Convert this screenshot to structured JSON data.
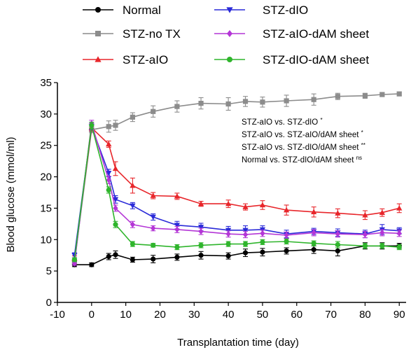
{
  "chart_data": {
    "type": "line",
    "xlabel": "Transplantation time (day)",
    "ylabel": "Blood glucose (mmol/ml)",
    "xlim": [
      -10,
      92
    ],
    "ylim": [
      0,
      35
    ],
    "xticks": [
      -10,
      0,
      10,
      20,
      30,
      40,
      50,
      60,
      70,
      80,
      90
    ],
    "yticks": [
      0,
      5,
      10,
      15,
      20,
      25,
      30,
      35
    ],
    "legend_placement": "top",
    "series": [
      {
        "name": "Normal",
        "color": "#000000",
        "marker": "circle",
        "x": [
          -5,
          0,
          5,
          7,
          12,
          18,
          25,
          32,
          40,
          45,
          50,
          57,
          65,
          72,
          80,
          85,
          90
        ],
        "y": [
          6.0,
          6.0,
          7.3,
          7.6,
          6.8,
          6.9,
          7.2,
          7.5,
          7.4,
          7.9,
          8.0,
          8.2,
          8.4,
          8.2,
          9.0,
          9.0,
          9.0
        ],
        "err": [
          0.3,
          0.3,
          0.5,
          0.6,
          0.4,
          0.6,
          0.5,
          0.6,
          0.5,
          0.6,
          0.6,
          0.5,
          0.6,
          0.8,
          0.5,
          0.5,
          0.4
        ]
      },
      {
        "name": "STZ-no TX",
        "color": "#8c8c8c",
        "marker": "square",
        "x": [
          -5,
          0,
          5,
          7,
          12,
          18,
          25,
          32,
          40,
          45,
          50,
          57,
          65,
          72,
          80,
          85,
          90
        ],
        "y": [
          6.5,
          27.5,
          28.0,
          28.2,
          29.5,
          30.4,
          31.2,
          31.7,
          31.6,
          32.0,
          31.9,
          32.1,
          32.3,
          32.8,
          32.9,
          33.1,
          33.2
        ],
        "err": [
          0.4,
          0.5,
          0.9,
          0.8,
          0.7,
          0.9,
          0.9,
          0.9,
          1.0,
          0.8,
          0.8,
          0.9,
          0.9,
          0.5,
          0.4,
          0.3,
          0.3
        ]
      },
      {
        "name": "STZ-aIO",
        "color": "#e8262b",
        "marker": "triangle",
        "x": [
          -5,
          0,
          5,
          7,
          12,
          18,
          25,
          32,
          40,
          45,
          50,
          57,
          65,
          72,
          80,
          85,
          90
        ],
        "y": [
          7.0,
          27.8,
          25.2,
          21.3,
          18.6,
          17.0,
          16.9,
          15.7,
          15.7,
          15.2,
          15.5,
          14.7,
          14.4,
          14.2,
          13.9,
          14.3,
          15.0
        ],
        "err": [
          0.4,
          0.5,
          0.5,
          1.1,
          1.2,
          0.5,
          0.5,
          0.4,
          0.6,
          0.5,
          0.7,
          0.8,
          0.8,
          0.7,
          0.7,
          0.6,
          0.7
        ]
      },
      {
        "name": "STZ-dIO",
        "color": "#2a2ad8",
        "marker": "triangle-down",
        "x": [
          -5,
          0,
          5,
          7,
          12,
          18,
          25,
          32,
          40,
          45,
          50,
          57,
          65,
          72,
          80,
          85,
          90
        ],
        "y": [
          7.5,
          28.0,
          20.6,
          16.4,
          15.4,
          13.6,
          12.3,
          12.0,
          11.5,
          11.5,
          11.6,
          10.9,
          11.3,
          11.1,
          10.9,
          11.6,
          11.4
        ],
        "err": [
          0.4,
          0.5,
          0.6,
          0.6,
          0.5,
          0.5,
          0.6,
          0.6,
          0.6,
          0.7,
          0.6,
          0.6,
          0.5,
          0.6,
          0.6,
          0.8,
          0.5
        ]
      },
      {
        "name": "STZ-aIO-dAM sheet",
        "color": "#b436d6",
        "marker": "diamond",
        "x": [
          -5,
          0,
          5,
          7,
          12,
          18,
          25,
          32,
          40,
          45,
          50,
          57,
          65,
          72,
          80,
          85,
          90
        ],
        "y": [
          6.2,
          28.5,
          19.5,
          15.0,
          12.4,
          11.8,
          11.6,
          11.3,
          10.9,
          10.8,
          11.0,
          10.7,
          11.1,
          10.9,
          10.8,
          11.1,
          11.0
        ],
        "err": [
          0.3,
          0.5,
          0.6,
          0.5,
          0.5,
          0.4,
          0.5,
          0.5,
          0.5,
          0.5,
          0.5,
          0.5,
          0.5,
          0.5,
          0.5,
          0.5,
          0.5
        ]
      },
      {
        "name": "STZ-dIO-dAM sheet",
        "color": "#2fb52c",
        "marker": "circle",
        "x": [
          -5,
          0,
          5,
          7,
          12,
          18,
          25,
          32,
          40,
          45,
          50,
          57,
          65,
          72,
          80,
          85,
          90
        ],
        "y": [
          6.8,
          28.2,
          17.9,
          12.4,
          9.3,
          9.1,
          8.8,
          9.1,
          9.3,
          9.3,
          9.6,
          9.7,
          9.4,
          9.2,
          9.0,
          9.0,
          8.8
        ],
        "err": [
          0.3,
          0.5,
          0.5,
          0.5,
          0.4,
          0.3,
          0.4,
          0.4,
          0.4,
          0.4,
          0.4,
          0.4,
          0.4,
          0.5,
          0.4,
          0.4,
          0.4
        ]
      }
    ],
    "annotations": [
      {
        "text": "STZ-aIO vs. STZ-dIO",
        "sig": "*"
      },
      {
        "text": "STZ-aIO vs. STZ-aIO/dAM sheet",
        "sig": "*"
      },
      {
        "text": "STZ-aIO vs. STZ-dIO/dAM sheet",
        "sig": "**"
      },
      {
        "text": "Normal vs. STZ-dIO/dAM sheet",
        "sig": "ns"
      }
    ]
  }
}
